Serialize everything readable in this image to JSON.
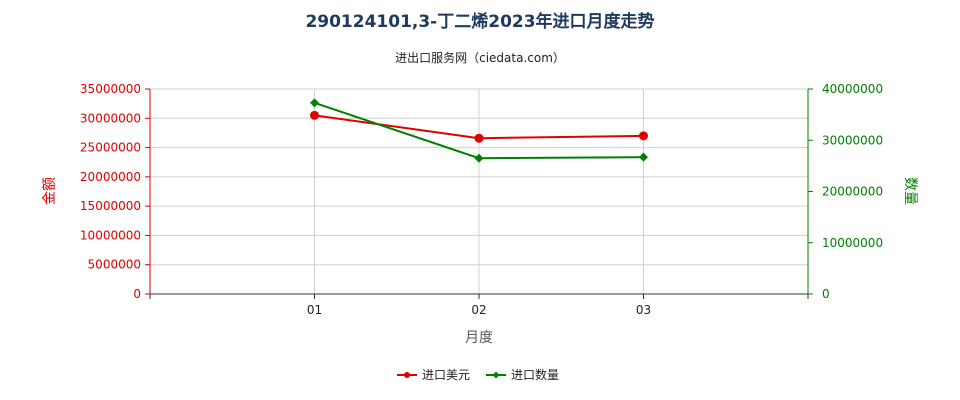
{
  "chart_data": {
    "type": "line",
    "title": "290124101,3-丁二烯2023年进口月度走势",
    "subtitle": "进出口服务网（ciedata.com）",
    "xlabel": "月度",
    "ylabel_left": "金额",
    "ylabel_right": "数量",
    "categories": [
      "01",
      "02",
      "03"
    ],
    "y_left": {
      "min": 0,
      "max": 35000000,
      "ticks": [
        "0",
        "5000000",
        "10000000",
        "15000000",
        "20000000",
        "25000000",
        "30000000",
        "35000000"
      ],
      "color": "#e00000"
    },
    "y_right": {
      "min": 0,
      "max": 40000000,
      "ticks": [
        "0",
        "10000000",
        "20000000",
        "30000000",
        "40000000"
      ],
      "color": "#008000"
    },
    "grid": true,
    "legend_position": "bottom",
    "series": [
      {
        "name": "进口美元",
        "axis": "left",
        "color": "#e00000",
        "marker": "circle",
        "values": [
          30500000,
          26600000,
          27000000
        ]
      },
      {
        "name": "进口数量",
        "axis": "right",
        "color": "#008000",
        "marker": "diamond",
        "values": [
          37300000,
          26500000,
          26700000
        ]
      }
    ]
  }
}
